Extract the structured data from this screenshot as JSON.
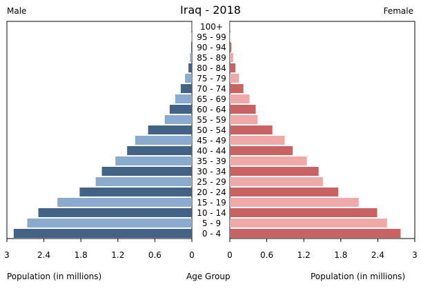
{
  "chart_data": {
    "type": "bar",
    "title": "Iraq - 2018",
    "left_label": "Male",
    "right_label": "Female",
    "xlabel_left": "Population (in millions)",
    "xlabel_center": "Age Group",
    "xlabel_right": "Population (in millions)",
    "xlim": [
      0,
      3
    ],
    "ticks": [
      "3",
      "2.4",
      "1.8",
      "1.2",
      "0.6",
      "0"
    ],
    "ticks_right": [
      "0",
      "0.6",
      "1.2",
      "1.8",
      "2.4",
      "3"
    ],
    "tick_values": [
      0,
      0.6,
      1.2,
      1.8,
      2.4,
      3
    ],
    "categories": [
      "100+",
      "95 - 99",
      "90 - 94",
      "85 - 89",
      "80 - 84",
      "75 - 79",
      "70 - 74",
      "65 - 69",
      "60 - 64",
      "55 - 59",
      "50 - 54",
      "45 - 49",
      "40 - 44",
      "35 - 39",
      "30 - 34",
      "25 - 29",
      "20 - 24",
      "15 - 19",
      "10 - 14",
      "5 - 9",
      "0 - 4"
    ],
    "series": [
      {
        "name": "Male",
        "color_dark": "#426386",
        "color_light": "#8aaace",
        "values": [
          0.001,
          0.004,
          0.012,
          0.03,
          0.055,
          0.11,
          0.18,
          0.27,
          0.36,
          0.44,
          0.71,
          0.92,
          1.05,
          1.24,
          1.46,
          1.56,
          1.82,
          2.18,
          2.49,
          2.67,
          2.89
        ]
      },
      {
        "name": "Female",
        "color_dark": "#c96363",
        "color_light": "#f0a9a9",
        "values": [
          0.002,
          0.007,
          0.025,
          0.055,
          0.09,
          0.15,
          0.22,
          0.32,
          0.42,
          0.45,
          0.69,
          0.89,
          1.02,
          1.25,
          1.44,
          1.51,
          1.76,
          2.09,
          2.39,
          2.55,
          2.77
        ]
      }
    ]
  }
}
